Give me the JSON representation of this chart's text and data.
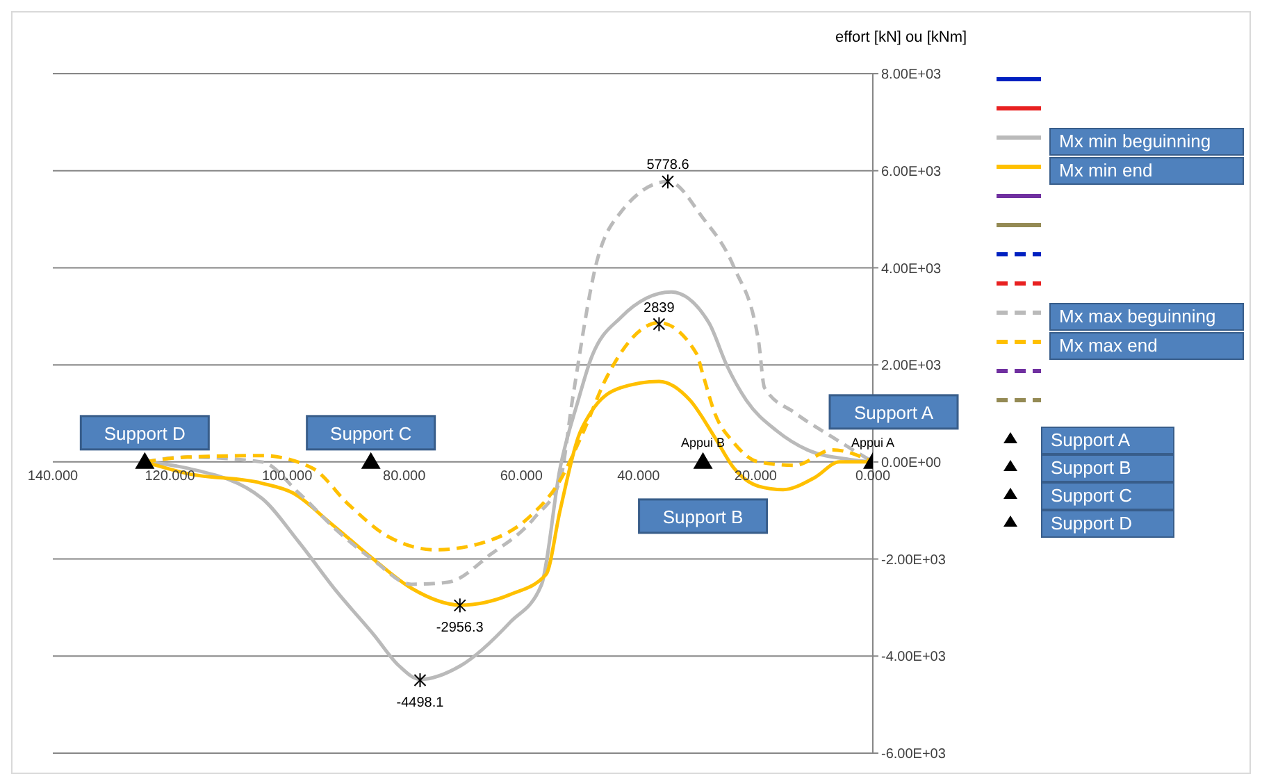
{
  "chart_data": {
    "type": "line",
    "ylabel": "effort [kN] ou [kNm]",
    "xlim": [
      140,
      0
    ],
    "xticks": [
      {
        "value": 140,
        "label": "140.000"
      },
      {
        "value": 120,
        "label": "120.000"
      },
      {
        "value": 100,
        "label": "100.000"
      },
      {
        "value": 80,
        "label": "80.000"
      },
      {
        "value": 60,
        "label": "60.000"
      },
      {
        "value": 40,
        "label": "40.000"
      },
      {
        "value": 20,
        "label": "20.000"
      },
      {
        "value": 0,
        "label": "0.000"
      }
    ],
    "ylim": [
      -6000,
      8000
    ],
    "yticks": [
      {
        "value": 8000,
        "label": "8.00E+03"
      },
      {
        "value": 6000,
        "label": "6.00E+03"
      },
      {
        "value": 4000,
        "label": "4.00E+03"
      },
      {
        "value": 2000,
        "label": "2.00E+03"
      },
      {
        "value": 0,
        "label": "0.00E+00"
      },
      {
        "value": -2000,
        "label": "-2.00E+03"
      },
      {
        "value": -4000,
        "label": "-4.00E+03"
      },
      {
        "value": -6000,
        "label": "-6.00E+03"
      }
    ],
    "grid": "y",
    "legend": "right",
    "marker": "none",
    "series": [
      {
        "color": "#0020c0",
        "line_style": "solid"
      },
      {
        "color": "#e82020",
        "line_style": "solid"
      },
      {
        "name": "Mx min beguinning",
        "color": "#bababa",
        "line_style": "solid",
        "x": [
          124.3,
          117,
          104.3,
          98,
          91.6,
          85.2,
          80.9,
          77.3,
          70.4,
          61.9,
          56.6,
          53.4,
          50.3,
          48.2,
          43,
          34.4,
          28,
          24.9,
          21.6,
          16.4,
          11.2,
          3.9,
          0
        ],
        "values": [
          0,
          -130,
          -750,
          -1650,
          -2660,
          -3560,
          -4200,
          -4480,
          -4200,
          -3300,
          -2540,
          -130,
          1270,
          2100,
          2980,
          3500,
          2870,
          1980,
          1270,
          640,
          250,
          50,
          0
        ]
      },
      {
        "name": "Mx min end",
        "color": "#ffc000",
        "line_style": "solid",
        "x": [
          124.3,
          117,
          104.3,
          99,
          92.5,
          85,
          78.8,
          70.4,
          61.9,
          55.8,
          53.4,
          50.3,
          48.2,
          43,
          36.5,
          31.2,
          27,
          23.7,
          19.5,
          15.3,
          9.9,
          5.7,
          0
        ],
        "values": [
          0,
          -240,
          -440,
          -640,
          -1270,
          -2030,
          -2600,
          -2950,
          -2730,
          -2320,
          -1000,
          510,
          1010,
          1530,
          1660,
          1270,
          510,
          -130,
          -500,
          -570,
          -320,
          0,
          0
        ]
      },
      {
        "color": "#7030a0",
        "line_style": "solid"
      },
      {
        "color": "#948a54",
        "line_style": "solid"
      },
      {
        "color": "#0020c0",
        "line_style": "dashed"
      },
      {
        "color": "#e82020",
        "line_style": "dashed"
      },
      {
        "name": "Mx max beguinning",
        "color": "#bababa",
        "line_style": "dashed",
        "x": [
          124.3,
          117,
          104.3,
          98,
          91.6,
          85.2,
          78.8,
          72.6,
          65.2,
          57.7,
          53.4,
          51.3,
          47.1,
          43,
          34.9,
          29.1,
          23.7,
          19.5,
          18.5,
          13.3,
          6.9,
          0
        ],
        "values": [
          0,
          100,
          0,
          -640,
          -1400,
          -2030,
          -2520,
          -2480,
          -1900,
          -1140,
          -380,
          1270,
          4140,
          5150,
          5780,
          5040,
          4010,
          2480,
          1530,
          1010,
          510,
          0
        ]
      },
      {
        "name": "Mx max end",
        "color": "#ffc000",
        "line_style": "dashed",
        "x": [
          124.3,
          117,
          104.3,
          95.8,
          89.3,
          83,
          74.6,
          66.2,
          58.7,
          53.4,
          49.5,
          45.5,
          36.5,
          30.1,
          29.1,
          27,
          23.7,
          19.5,
          13.3,
          6.9,
          0
        ],
        "values": [
          0,
          100,
          130,
          -120,
          -900,
          -1520,
          -1810,
          -1650,
          -1140,
          -380,
          600,
          1730,
          2870,
          2230,
          1840,
          1010,
          390,
          0,
          -70,
          250,
          0
        ]
      },
      {
        "color": "#7030a0",
        "line_style": "dashed"
      },
      {
        "color": "#948a54",
        "line_style": "dashed"
      },
      {
        "name": "Support A",
        "type": "scatter",
        "marker": "triangle",
        "color": "#000000",
        "x": [
          0
        ],
        "values": [
          0
        ]
      },
      {
        "name": "Support B",
        "type": "scatter",
        "marker": "triangle",
        "color": "#000000",
        "x": [
          29
        ],
        "values": [
          0
        ]
      },
      {
        "name": "Support C",
        "type": "scatter",
        "marker": "triangle",
        "color": "#000000",
        "x": [
          85.7
        ],
        "values": [
          0
        ]
      },
      {
        "name": "Support D",
        "type": "scatter",
        "marker": "triangle",
        "color": "#000000",
        "x": [
          124.3
        ],
        "values": [
          0
        ]
      }
    ],
    "annotations": [
      {
        "text": "5778.6",
        "x": 35,
        "y": 5778.6
      },
      {
        "text": "2839",
        "x": 36.5,
        "y": 2839
      },
      {
        "text": "-2956.3",
        "x": 70.5,
        "y": -2956.3
      },
      {
        "text": "-4498.1",
        "x": 77.3,
        "y": -4498.1
      },
      {
        "text": "Appui B",
        "x": 29,
        "y": 0
      },
      {
        "text": "Appui A",
        "x": 0,
        "y": 0
      },
      {
        "text": "Support D",
        "x": 124.3,
        "y": 0
      },
      {
        "text": "Support C",
        "x": 85.7,
        "y": 0
      },
      {
        "text": "Support B",
        "x": 29,
        "y": 0
      },
      {
        "text": "Support A",
        "x": 0,
        "y": 0
      }
    ]
  }
}
